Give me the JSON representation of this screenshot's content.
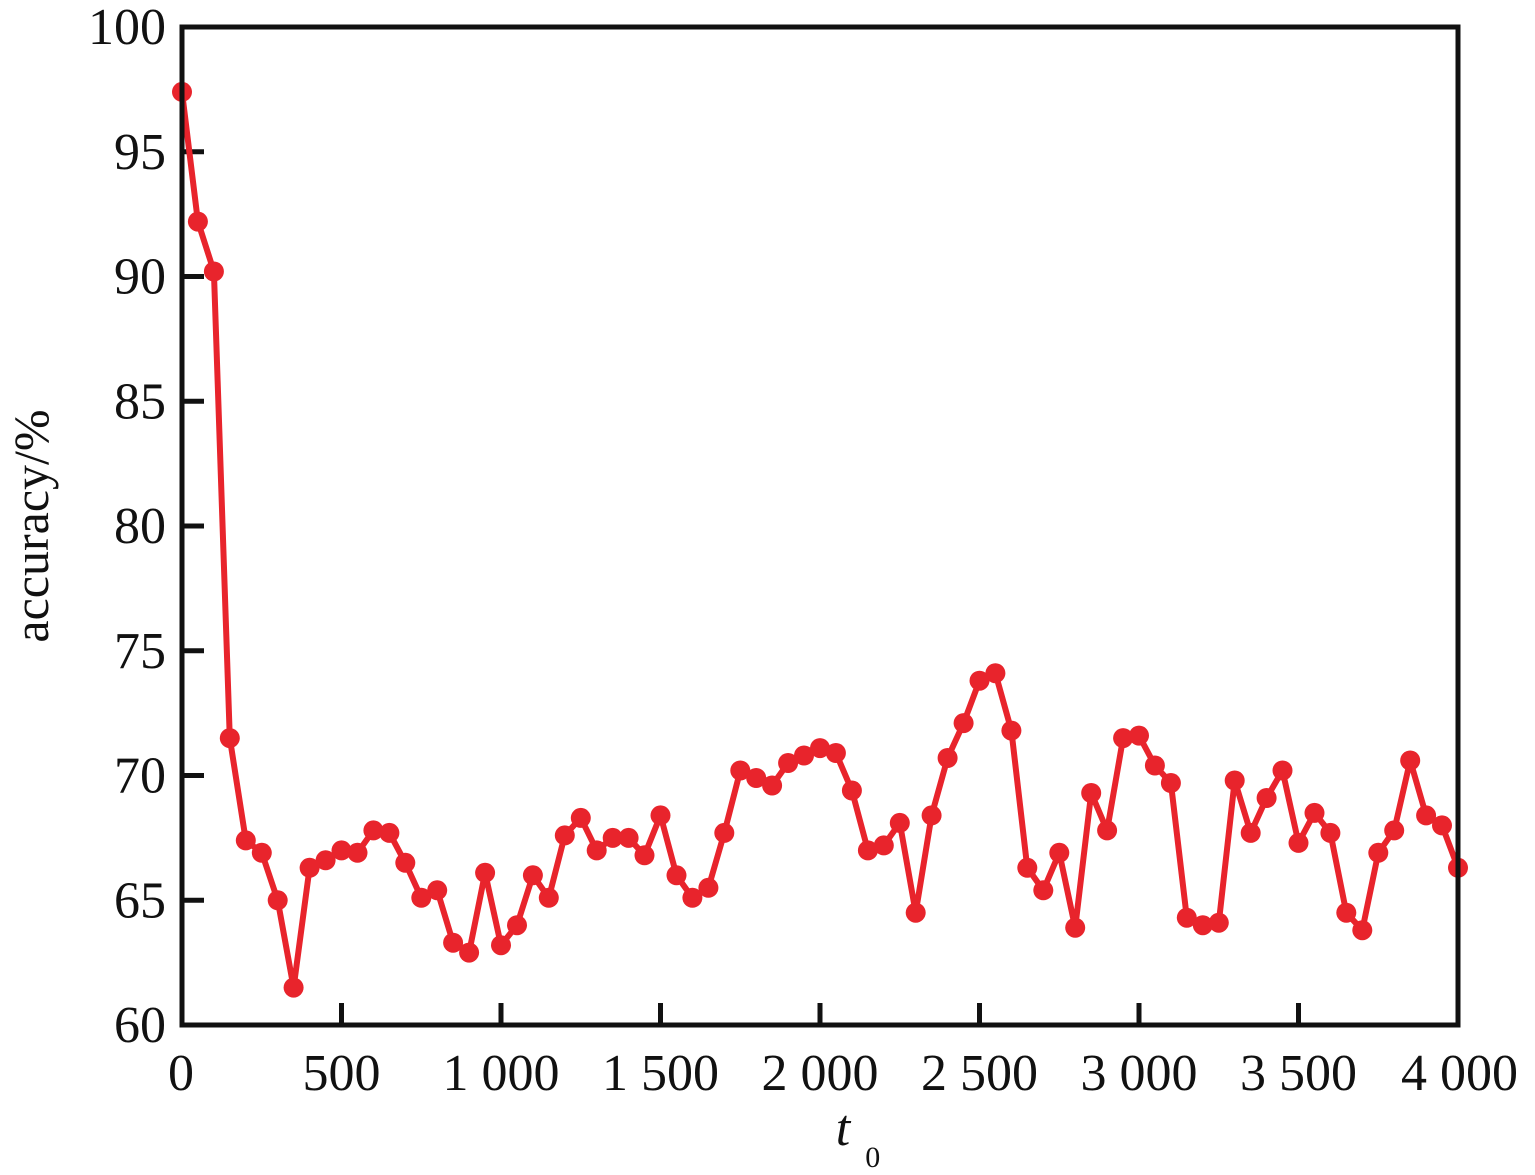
{
  "chart_data": {
    "type": "line",
    "title": "",
    "xlabel": "t",
    "xlabel_subscript": "0",
    "ylabel": "accuracy/%",
    "xlim": [
      0,
      4000
    ],
    "ylim": [
      60,
      100
    ],
    "x_ticks": [
      0,
      500,
      1000,
      1500,
      2000,
      2500,
      3000,
      3500,
      4000
    ],
    "x_tick_labels": [
      "0",
      "500",
      "1 000",
      "1 500",
      "2 000",
      "2 500",
      "3 000",
      "3 500",
      "4 000"
    ],
    "y_ticks": [
      60,
      65,
      70,
      75,
      80,
      85,
      90,
      95,
      100
    ],
    "y_tick_labels": [
      "60",
      "65",
      "70",
      "75",
      "80",
      "85",
      "90",
      "95",
      "100"
    ],
    "grid": false,
    "legend": "none",
    "color": "#e8242c",
    "series": [
      {
        "x": [
          0,
          50,
          100,
          150,
          200,
          250,
          300,
          350,
          400,
          450,
          500,
          550,
          600,
          650,
          700,
          750,
          800,
          850,
          900,
          950,
          1000,
          1050,
          1100,
          1150,
          1200,
          1250,
          1300,
          1350,
          1400,
          1450,
          1500,
          1550,
          1600,
          1650,
          1700,
          1750,
          1800,
          1850,
          1900,
          1950,
          2000,
          2050,
          2100,
          2150,
          2200,
          2250,
          2300,
          2350,
          2400,
          2450,
          2500,
          2550,
          2600,
          2650,
          2700,
          2750,
          2800,
          2850,
          2900,
          2950,
          3000,
          3050,
          3100,
          3150,
          3200,
          3250,
          3300,
          3350,
          3400,
          3450,
          3500,
          3550,
          3600,
          3650,
          3700,
          3750,
          3800,
          3850,
          3900,
          3950,
          4000
        ],
        "y": [
          97.4,
          92.2,
          90.2,
          71.5,
          67.4,
          66.9,
          65.0,
          61.5,
          66.3,
          66.6,
          67.0,
          66.9,
          67.8,
          67.7,
          66.5,
          65.1,
          65.4,
          63.3,
          62.9,
          66.1,
          63.2,
          64.0,
          66.0,
          65.1,
          67.6,
          68.3,
          67.0,
          67.5,
          67.5,
          66.8,
          68.4,
          66.0,
          65.1,
          65.5,
          67.7,
          70.2,
          69.9,
          69.6,
          70.5,
          70.8,
          71.1,
          70.9,
          69.4,
          67.0,
          67.2,
          68.1,
          64.5,
          68.4,
          70.7,
          72.1,
          73.8,
          74.1,
          71.8,
          66.3,
          65.4,
          66.9,
          63.9,
          69.3,
          67.8,
          71.5,
          71.6,
          70.4,
          69.7,
          64.3,
          64.0,
          64.1,
          69.8,
          67.7,
          69.1,
          70.2,
          67.3,
          68.5,
          67.7,
          64.5,
          63.8,
          66.9,
          67.8,
          70.6,
          68.4,
          68.0,
          66.3
        ]
      }
    ]
  }
}
